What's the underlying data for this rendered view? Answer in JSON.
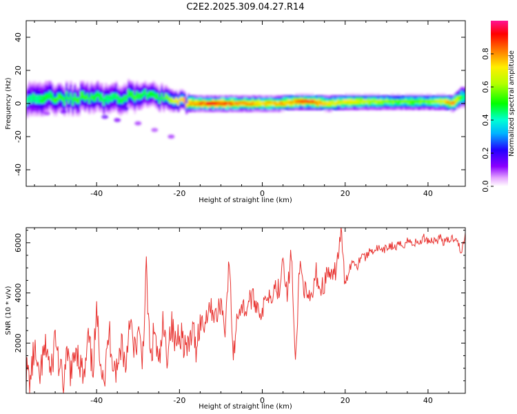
{
  "title": "C2E2.2025.309.04.27.R14",
  "colorbar": {
    "label": "Normalized spectral amplitude",
    "ticks": [
      "0.0",
      "0.2",
      "0.4",
      "0.6",
      "0.8"
    ],
    "tick_values": [
      0.0,
      0.2,
      0.4,
      0.6,
      0.8
    ],
    "range": [
      0,
      1
    ],
    "colormap": "rainbow (white-magenta-violet-blue-cyan-green-yellow-orange-red-pink)"
  },
  "chart_data": [
    {
      "type": "heatmap",
      "xlabel": "Height of straight line (km)",
      "ylabel": "Frequency (Hz)",
      "xlim": [
        -57,
        49
      ],
      "ylim": [
        -50,
        50
      ],
      "xticks": [
        -40,
        -20,
        0,
        20,
        40
      ],
      "yticks": [
        -40,
        -20,
        0,
        20,
        40
      ],
      "xtick_labels": [
        "-40",
        "-20",
        "0",
        "20",
        "40"
      ],
      "ytick_labels": [
        "-40",
        "-20",
        "0",
        "20",
        "40"
      ],
      "ridge": {
        "x": [
          -57,
          -54,
          -50,
          -46,
          -42,
          -38,
          -35,
          -31,
          -28,
          -24,
          -20,
          -16,
          -12,
          -8,
          -4,
          0,
          4,
          8,
          12,
          16,
          20,
          24,
          28,
          32,
          36,
          40,
          44,
          46,
          48,
          49
        ],
        "center_hz": [
          3,
          4,
          3,
          3,
          4,
          3,
          3,
          5,
          5,
          4,
          1,
          0,
          0,
          0,
          0,
          0,
          0,
          1,
          1,
          0,
          1,
          1,
          1,
          1,
          1,
          1,
          1,
          0,
          4,
          4
        ],
        "peak_amplitude": [
          0.45,
          0.5,
          0.55,
          0.55,
          0.55,
          0.5,
          0.5,
          0.55,
          0.5,
          0.55,
          0.8,
          0.85,
          0.95,
          0.9,
          0.85,
          0.8,
          0.8,
          0.85,
          0.9,
          0.75,
          0.75,
          0.7,
          0.65,
          0.6,
          0.6,
          0.6,
          0.75,
          0.9,
          0.55,
          0.45
        ],
        "half_width_hz": [
          7,
          7,
          6,
          6,
          6,
          6,
          6,
          6,
          5,
          5,
          4,
          3,
          3,
          3,
          3,
          3,
          3,
          3,
          3,
          3,
          3,
          3,
          3,
          3,
          3,
          3,
          3,
          3,
          4,
          4
        ]
      },
      "scatter_blobs": [
        {
          "x": -52,
          "y": -6,
          "amp": 0.05
        },
        {
          "x": -48,
          "y": -5,
          "amp": 0.08
        },
        {
          "x": -38,
          "y": -8,
          "amp": 0.1
        },
        {
          "x": -35,
          "y": -10,
          "amp": 0.08
        },
        {
          "x": -30,
          "y": -12,
          "amp": 0.05
        },
        {
          "x": -26,
          "y": -16,
          "amp": 0.04
        },
        {
          "x": -22,
          "y": -20,
          "amp": 0.05
        },
        {
          "x": -33,
          "y": -3,
          "amp": 0.12
        }
      ]
    },
    {
      "type": "line",
      "xlabel": "Height of straight line (km)",
      "ylabel": "SNR (10 * v/v)",
      "xlim": [
        -57,
        49
      ],
      "ylim": [
        0,
        6600
      ],
      "xticks": [
        -40,
        -20,
        0,
        20,
        40
      ],
      "yticks": [
        2000,
        4000,
        6000
      ],
      "xtick_labels": [
        "-40",
        "-20",
        "0",
        "20",
        "40"
      ],
      "ytick_labels": [
        "2000",
        "4000",
        "6000"
      ],
      "color": "#e8322f",
      "series": [
        {
          "name": "SNR",
          "x": [
            -57,
            -56,
            -55,
            -54,
            -53,
            -52,
            -51,
            -50,
            -49,
            -48,
            -47,
            -46,
            -45,
            -44,
            -43,
            -42,
            -41,
            -40,
            -39,
            -38,
            -37,
            -36,
            -35,
            -34,
            -33,
            -32,
            -31,
            -30,
            -29,
            -28,
            -27,
            -26,
            -25,
            -24,
            -23,
            -22,
            -21,
            -20,
            -19,
            -18,
            -17,
            -16,
            -15,
            -14,
            -13,
            -12,
            -11,
            -10,
            -9,
            -8,
            -7,
            -6,
            -5,
            -4,
            -3,
            -2,
            -1,
            0,
            1,
            2,
            3,
            4,
            5,
            6,
            7,
            8,
            9,
            10,
            11,
            12,
            13,
            14,
            15,
            16,
            17,
            18,
            19,
            20,
            21,
            22,
            23,
            24,
            25,
            26,
            27,
            28,
            29,
            30,
            31,
            32,
            33,
            34,
            35,
            36,
            37,
            38,
            39,
            40,
            41,
            42,
            43,
            44,
            45,
            46,
            47,
            48,
            49
          ],
          "y": [
            900,
            500,
            1800,
            400,
            1300,
            1900,
            600,
            2400,
            1000,
            300,
            1500,
            700,
            2000,
            1200,
            500,
            2200,
            900,
            3000,
            1400,
            600,
            2500,
            1300,
            800,
            2200,
            1000,
            3200,
            1500,
            2400,
            1300,
            4800,
            1200,
            2600,
            900,
            2600,
            1600,
            2800,
            1900,
            2600,
            2100,
            1600,
            2500,
            1900,
            2900,
            2700,
            3500,
            3300,
            3000,
            3700,
            2600,
            5300,
            1400,
            3200,
            3500,
            3300,
            3800,
            3700,
            3500,
            3100,
            4000,
            3900,
            4300,
            4100,
            5600,
            3800,
            5700,
            900,
            5200,
            4300,
            3600,
            3800,
            4800,
            4100,
            4400,
            4900,
            4400,
            5200,
            6400,
            4300,
            5000,
            5300,
            5100,
            5600,
            5400,
            5700,
            5700,
            5800,
            5600,
            5800,
            5900,
            5800,
            5900,
            5900,
            6100,
            6000,
            6000,
            6000,
            6200,
            6100,
            6100,
            6100,
            6200,
            6000,
            6100,
            6200,
            6200,
            5500,
            6400
          ]
        }
      ]
    }
  ]
}
